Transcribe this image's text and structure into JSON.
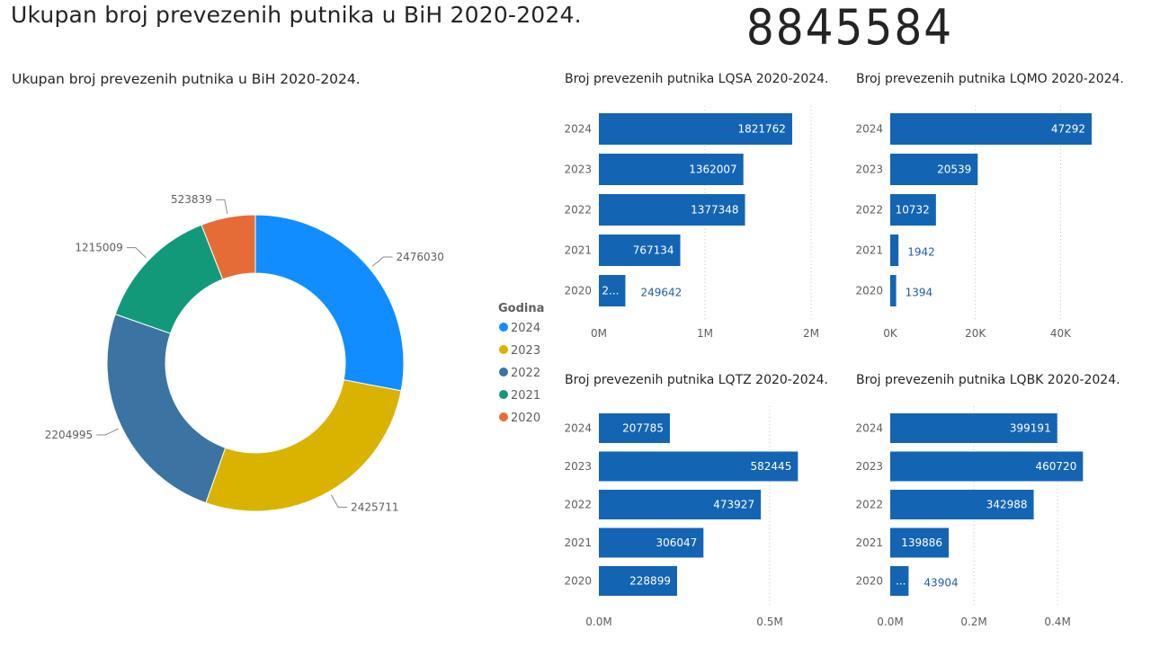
{
  "header": {
    "title": "Ukupan broj prevezenih putnika u BiH 2020-2024.",
    "kpi_value": "8845584"
  },
  "colors": {
    "bar": "#1464B4",
    "2024": "#118DFF",
    "2023": "#D9B300",
    "2022": "#3B73A3",
    "2021": "#12997A",
    "2020": "#E66C37",
    "axis_text": "#605e5c",
    "outside_label": "#1D5EA8"
  },
  "chart_data": [
    {
      "type": "pie",
      "title": "Ukupan broj prevezenih putnika u BiH 2020-2024.",
      "legend_title": "Godina",
      "legend_position": "right",
      "slices": [
        {
          "label": "2024",
          "value": 2476030,
          "display": "2476030",
          "color": "#118DFF"
        },
        {
          "label": "2023",
          "value": 2425711,
          "display": "2425711",
          "color": "#D9B300"
        },
        {
          "label": "2022",
          "value": 2204995,
          "display": "2204995",
          "color": "#3B73A3"
        },
        {
          "label": "2021",
          "value": 1215009,
          "display": "1215009",
          "color": "#12997A"
        },
        {
          "label": "2020",
          "value": 523839,
          "display": "523839",
          "color": "#E66C37"
        }
      ]
    },
    {
      "type": "bar",
      "title": "Broj prevezenih putnika LQSA 2020-2024.",
      "categories": [
        "2024",
        "2023",
        "2022",
        "2021",
        "2020"
      ],
      "values": [
        1821762,
        1362007,
        1377348,
        767134,
        249642
      ],
      "labels": [
        {
          "inside": "1821762",
          "outside": ""
        },
        {
          "inside": "1362007",
          "outside": ""
        },
        {
          "inside": "1377348",
          "outside": ""
        },
        {
          "inside": "767134",
          "outside": ""
        },
        {
          "inside": "2...",
          "outside": "249642"
        }
      ],
      "xlim": [
        0,
        2000000
      ],
      "ticks": [
        {
          "value": 0,
          "label": "0M"
        },
        {
          "value": 1000000,
          "label": "1M"
        },
        {
          "value": 2000000,
          "label": "2M"
        }
      ]
    },
    {
      "type": "bar",
      "title": "Broj prevezenih putnika LQMO 2020-2024.",
      "categories": [
        "2024",
        "2023",
        "2022",
        "2021",
        "2020"
      ],
      "values": [
        47292,
        20539,
        10732,
        1942,
        1394
      ],
      "labels": [
        {
          "inside": "47292",
          "outside": ""
        },
        {
          "inside": "20539",
          "outside": ""
        },
        {
          "inside": "10732",
          "outside": ""
        },
        {
          "inside": "",
          "outside": "1942"
        },
        {
          "inside": "",
          "outside": "1394"
        }
      ],
      "xlim": [
        0,
        47500
      ],
      "ticks": [
        {
          "value": 0,
          "label": "0K"
        },
        {
          "value": 20000,
          "label": "20K"
        },
        {
          "value": 40000,
          "label": "40K"
        }
      ]
    },
    {
      "type": "bar",
      "title": "Broj prevezenih putnika LQTZ 2020-2024.",
      "categories": [
        "2024",
        "2023",
        "2022",
        "2021",
        "2020"
      ],
      "values": [
        207785,
        582445,
        473927,
        306047,
        228899
      ],
      "labels": [
        {
          "inside": "207785",
          "outside": ""
        },
        {
          "inside": "582445",
          "outside": ""
        },
        {
          "inside": "473927",
          "outside": ""
        },
        {
          "inside": "306047",
          "outside": ""
        },
        {
          "inside": "228899",
          "outside": ""
        }
      ],
      "xlim": [
        0,
        600000
      ],
      "ticks": [
        {
          "value": 0,
          "label": "0.0M"
        },
        {
          "value": 500000,
          "label": "0.5M"
        }
      ]
    },
    {
      "type": "bar",
      "title": "Broj prevezenih putnika LQBK 2020-2024.",
      "categories": [
        "2024",
        "2023",
        "2022",
        "2021",
        "2020"
      ],
      "values": [
        399191,
        460720,
        342988,
        139886,
        43904
      ],
      "labels": [
        {
          "inside": "399191",
          "outside": ""
        },
        {
          "inside": "460720",
          "outside": ""
        },
        {
          "inside": "342988",
          "outside": ""
        },
        {
          "inside": "139886",
          "outside": ""
        },
        {
          "inside": "...",
          "outside": "43904"
        }
      ],
      "xlim": [
        0,
        460000
      ],
      "ticks": [
        {
          "value": 0,
          "label": "0.0M"
        },
        {
          "value": 200000,
          "label": "0.2M"
        },
        {
          "value": 400000,
          "label": "0.4M"
        }
      ]
    }
  ]
}
